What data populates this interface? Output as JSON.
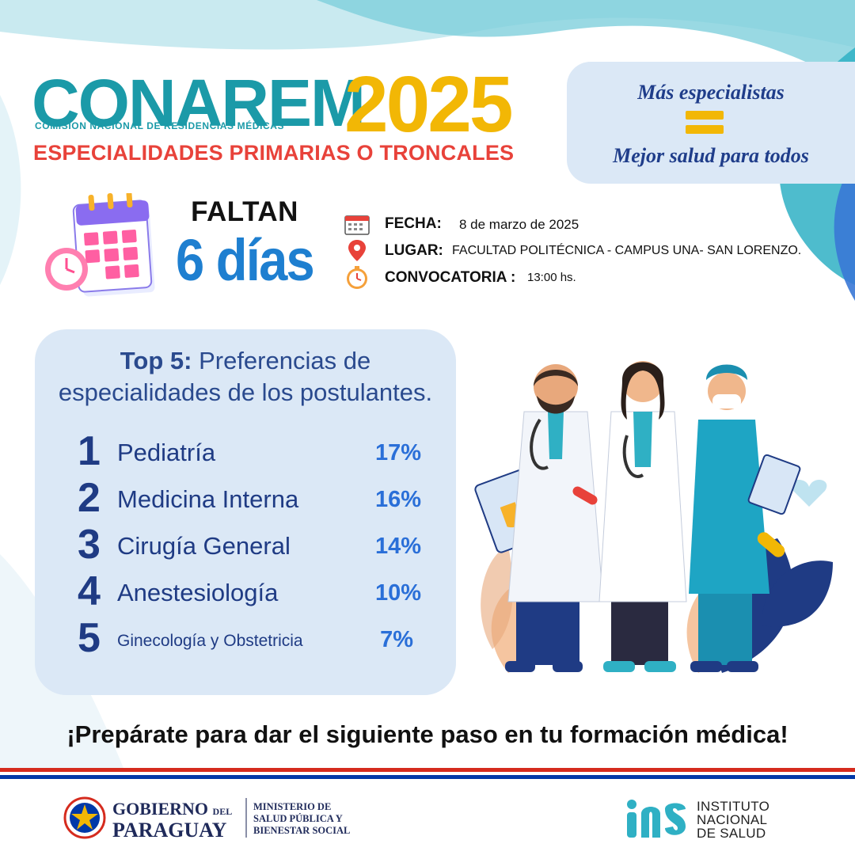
{
  "header": {
    "brand": "CONAREM",
    "year": "2025",
    "subtitle": "COMISION NACIONAL DE RESIDENCIAS MÉDICAS",
    "tagline": "ESPECIALIDADES PRIMARIAS O TRONCALES"
  },
  "slogan": {
    "line1": "Más especialistas",
    "line2": "Mejor salud para todos"
  },
  "countdown": {
    "label": "FALTAN",
    "value": "6 días"
  },
  "details": {
    "date_label": "FECHA:",
    "date_value": "8 de marzo de 2025",
    "place_label": "LUGAR:",
    "place_value": "FACULTAD POLITÉCNICA - CAMPUS UNA- SAN LORENZO.",
    "call_label": "CONVOCATORIA :",
    "call_value": "13:00 hs."
  },
  "top5": {
    "title_bold": "Top 5:",
    "title_rest": " Preferencias de",
    "title_line2": "especialidades de los postulantes.",
    "items": [
      {
        "rank": "1",
        "name": "Pediatría",
        "pct": "17%"
      },
      {
        "rank": "2",
        "name": "Medicina Interna",
        "pct": "16%"
      },
      {
        "rank": "3",
        "name": "Cirugía General",
        "pct": "14%"
      },
      {
        "rank": "4",
        "name": "Anestesiología",
        "pct": "10%"
      },
      {
        "rank": "5",
        "name": "Ginecología y Obstetricia",
        "pct": "7%"
      }
    ]
  },
  "cta": "¡Prepárate para dar el siguiente paso en tu formación médica!",
  "footer": {
    "gov_line1": "GOBIERNO",
    "gov_del": "DEL",
    "gov_line2": "PARAGUAY",
    "ministry_1": "MINISTERIO DE",
    "ministry_2": "SALUD PÚBLICA Y",
    "ministry_3": "BIENESTAR SOCIAL",
    "ins_1": "INSTITUTO",
    "ins_2": "NACIONAL",
    "ins_3": "DE SALUD"
  },
  "colors": {
    "teal": "#1b9aa8",
    "yellow": "#f2b705",
    "red": "#e8423a",
    "navy": "#1f3b84",
    "blue": "#2a6fd8",
    "panel": "#dbe8f6"
  },
  "icons": [
    "calendar-icon",
    "alarm-clock-icon",
    "location-pin-icon",
    "clock-icon",
    "paraguay-seal-icon",
    "ins-logo-icon"
  ]
}
